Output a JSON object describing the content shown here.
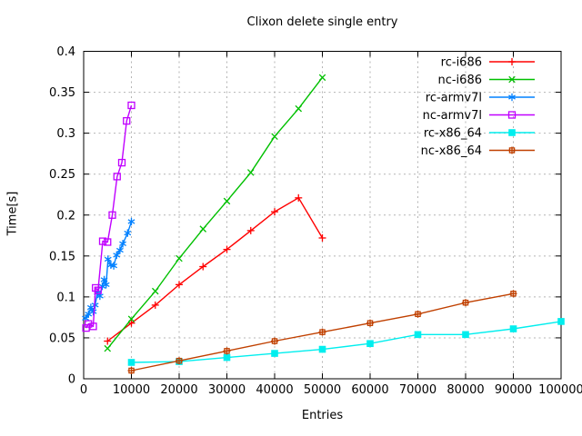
{
  "chart_data": {
    "type": "line",
    "title": "Clixon delete single entry",
    "xlabel": "Entries",
    "ylabel": "Time[s]",
    "xlim": [
      0,
      100000
    ],
    "ylim": [
      0,
      0.4
    ],
    "xticks": [
      0,
      10000,
      20000,
      30000,
      40000,
      50000,
      60000,
      70000,
      80000,
      90000,
      100000
    ],
    "xtick_labels": [
      "0",
      "10000",
      "20000",
      "30000",
      "40000",
      "50000",
      "60000",
      "70000",
      "80000",
      "90000",
      "100000"
    ],
    "yticks": [
      0,
      0.05,
      0.1,
      0.15,
      0.2,
      0.25,
      0.3,
      0.35,
      0.4
    ],
    "ytick_labels": [
      "0",
      "0.05",
      "0.1",
      "0.15",
      "0.2",
      "0.25",
      "0.3",
      "0.35",
      "0.4"
    ],
    "grid": true,
    "legend_position": "top-right-inside",
    "series": [
      {
        "name": "rc-i686",
        "color": "#ff0000",
        "marker": "plus",
        "points": [
          [
            5000,
            0.046
          ],
          [
            10000,
            0.068
          ],
          [
            15000,
            0.09
          ],
          [
            20000,
            0.115
          ],
          [
            25000,
            0.137
          ],
          [
            30000,
            0.158
          ],
          [
            35000,
            0.181
          ],
          [
            40000,
            0.204
          ],
          [
            45000,
            0.221
          ],
          [
            50000,
            0.172
          ]
        ]
      },
      {
        "name": "nc-i686",
        "color": "#00c000",
        "marker": "cross",
        "points": [
          [
            5000,
            0.037
          ],
          [
            10000,
            0.073
          ],
          [
            15000,
            0.107
          ],
          [
            20000,
            0.147
          ],
          [
            25000,
            0.183
          ],
          [
            30000,
            0.217
          ],
          [
            35000,
            0.252
          ],
          [
            40000,
            0.296
          ],
          [
            45000,
            0.33
          ],
          [
            50000,
            0.368
          ]
        ]
      },
      {
        "name": "rc-armv7l",
        "color": "#0080ff",
        "marker": "asterisk",
        "points": [
          [
            400,
            0.074
          ],
          [
            1000,
            0.079
          ],
          [
            1500,
            0.087
          ],
          [
            2000,
            0.082
          ],
          [
            2400,
            0.09
          ],
          [
            2900,
            0.105
          ],
          [
            3400,
            0.101
          ],
          [
            3900,
            0.113
          ],
          [
            4300,
            0.121
          ],
          [
            4700,
            0.115
          ],
          [
            5100,
            0.146
          ],
          [
            5700,
            0.139
          ],
          [
            6300,
            0.138
          ],
          [
            6900,
            0.151
          ],
          [
            7600,
            0.157
          ],
          [
            8200,
            0.165
          ],
          [
            9200,
            0.178
          ],
          [
            10000,
            0.192
          ]
        ]
      },
      {
        "name": "nc-armv7l",
        "color": "#c000ff",
        "marker": "open-square",
        "points": [
          [
            500,
            0.062
          ],
          [
            1000,
            0.067
          ],
          [
            2000,
            0.064
          ],
          [
            2500,
            0.111
          ],
          [
            3000,
            0.108
          ],
          [
            4000,
            0.168
          ],
          [
            5000,
            0.167
          ],
          [
            6000,
            0.2
          ],
          [
            7000,
            0.247
          ],
          [
            8000,
            0.264
          ],
          [
            9000,
            0.315
          ],
          [
            10000,
            0.334
          ]
        ]
      },
      {
        "name": "rc-x86_64",
        "color": "#00eeee",
        "marker": "filled-square",
        "points": [
          [
            10000,
            0.02
          ],
          [
            20000,
            0.021
          ],
          [
            30000,
            0.026
          ],
          [
            40000,
            0.031
          ],
          [
            50000,
            0.036
          ],
          [
            60000,
            0.043
          ],
          [
            70000,
            0.054
          ],
          [
            80000,
            0.054
          ],
          [
            90000,
            0.061
          ],
          [
            100000,
            0.07
          ]
        ]
      },
      {
        "name": "nc-x86_64",
        "color": "#c04000",
        "marker": "boxed-plus",
        "points": [
          [
            10000,
            0.01
          ],
          [
            20000,
            0.022
          ],
          [
            30000,
            0.034
          ],
          [
            40000,
            0.046
          ],
          [
            50000,
            0.057
          ],
          [
            60000,
            0.068
          ],
          [
            70000,
            0.079
          ],
          [
            80000,
            0.093
          ],
          [
            90000,
            0.104
          ]
        ]
      }
    ],
    "style": {
      "grid_color": "#b4b4b4",
      "border_color": "#000000",
      "text_color": "#000000",
      "background": "#ffffff"
    }
  }
}
